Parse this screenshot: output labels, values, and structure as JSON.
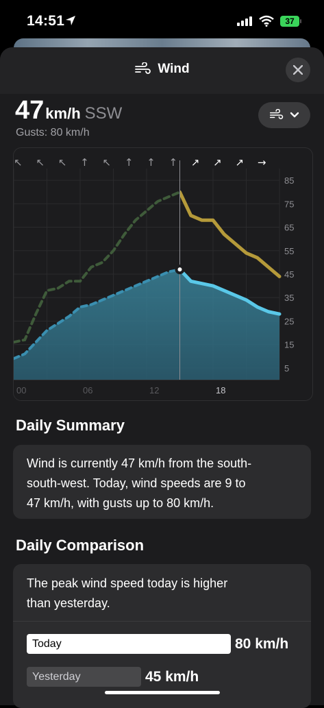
{
  "status_bar": {
    "time": "14:51",
    "battery": "37"
  },
  "sheet": {
    "title": "Wind"
  },
  "current": {
    "speed": "47",
    "unit": "km/h",
    "direction": "SSW",
    "gusts": "Gusts: 80 km/h"
  },
  "chart_data": {
    "type": "line",
    "x_tick_labels": [
      "00",
      "06",
      "12",
      "18"
    ],
    "y_tick_labels": [
      "85",
      "75",
      "65",
      "55",
      "45",
      "35",
      "25",
      "15",
      "5"
    ],
    "ylim": [
      0,
      90
    ],
    "xlim": [
      0,
      24
    ],
    "current_hour": 15,
    "direction_arrows": [
      "↖",
      "↖",
      "↖",
      "↑",
      "↖",
      "↑",
      "↑",
      "↑",
      "↗",
      "↗",
      "↗",
      "→"
    ],
    "series": [
      {
        "x": [
          0,
          1,
          2,
          3,
          4,
          5,
          6,
          7,
          8,
          9,
          10,
          11,
          12,
          13,
          14,
          15,
          16,
          17,
          18,
          19,
          20,
          21,
          22,
          23,
          24
        ],
        "values": [
          16,
          17,
          28,
          38,
          39,
          42,
          42,
          48,
          50,
          55,
          62,
          68,
          72,
          76,
          78,
          80,
          70,
          68,
          68,
          62,
          58,
          54,
          52,
          48,
          44
        ],
        "color": "#b59a3a"
      },
      {
        "x": [
          0,
          1,
          2,
          3,
          4,
          5,
          6,
          7,
          8,
          9,
          10,
          11,
          12,
          13,
          14,
          15,
          16,
          17,
          18,
          19,
          20,
          21,
          22,
          23,
          24
        ],
        "values": [
          9,
          11,
          16,
          21,
          24,
          27,
          31,
          32,
          34,
          36,
          38,
          40,
          42,
          44,
          46,
          47,
          42,
          41,
          40,
          38,
          36,
          34,
          31,
          29,
          28
        ],
        "color": "#5ac8e8"
      }
    ]
  },
  "daily_summary": {
    "title": "Daily Summary",
    "lines": [
      "Wind is currently 47 km/h from the south-",
      "south-west. Today, wind speeds are 9 to",
      "47 km/h, with gusts up to 80 km/h."
    ]
  },
  "daily_comparison": {
    "title": "Daily Comparison",
    "lines": [
      "The peak wind speed today is higher",
      "than yesterday."
    ],
    "today_label": "Today",
    "today_value": "80 km/h",
    "yesterday_label": "Yesterday",
    "yesterday_value": "45 km/h"
  }
}
